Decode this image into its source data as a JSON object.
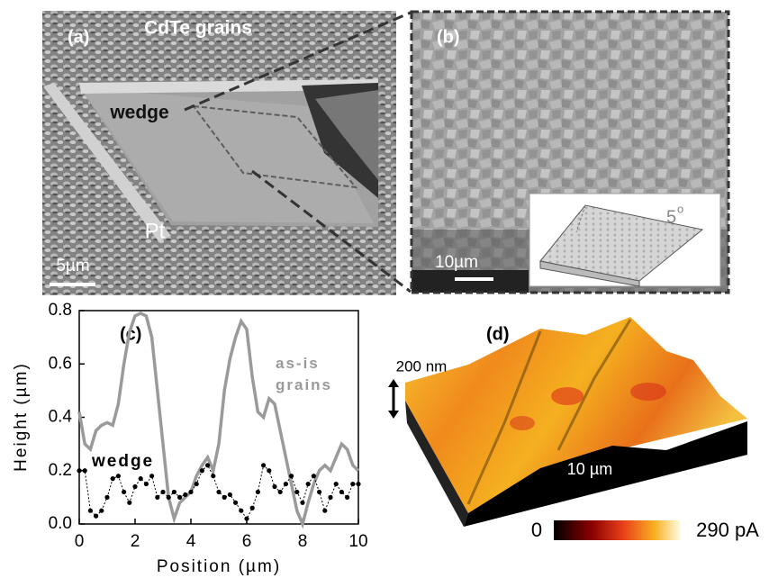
{
  "panels": {
    "a": {
      "label": "(a)",
      "title": "CdTe grains",
      "wedge_label": "wedge",
      "pt_label": "Pt",
      "scale_bar": "5µm"
    },
    "b": {
      "label": "(b)",
      "scale_bar": "10µm",
      "inset_angle": "5",
      "inset_angle_unit": "o"
    },
    "d": {
      "label": "(d)",
      "height_scale": "200 nm",
      "length_scale": "10 µm",
      "colorbar_min": "0",
      "colorbar_max": "290 pA"
    }
  },
  "chart_data": {
    "type": "line",
    "panel_label": "(c)",
    "x_label": "Position (µm)",
    "y_label": "Height (µm)",
    "x": [
      0,
      0.2,
      0.4,
      0.6,
      0.8,
      1.0,
      1.2,
      1.4,
      1.6,
      1.8,
      2.0,
      2.2,
      2.4,
      2.6,
      2.8,
      3.0,
      3.2,
      3.4,
      3.6,
      3.8,
      4.0,
      4.2,
      4.4,
      4.6,
      4.8,
      5.0,
      5.2,
      5.4,
      5.6,
      5.8,
      6.0,
      6.2,
      6.4,
      6.6,
      6.8,
      7.0,
      7.2,
      7.4,
      7.6,
      7.8,
      8.0,
      8.2,
      8.4,
      8.6,
      8.8,
      9.0,
      9.2,
      9.4,
      9.6,
      9.8,
      10.0
    ],
    "series": [
      {
        "name": "as-is grains",
        "color": "#9a9a9a",
        "marker": false,
        "values": [
          0.42,
          0.3,
          0.28,
          0.35,
          0.37,
          0.38,
          0.37,
          0.45,
          0.6,
          0.72,
          0.78,
          0.79,
          0.78,
          0.7,
          0.5,
          0.3,
          0.1,
          0.02,
          0.08,
          0.1,
          0.12,
          0.18,
          0.22,
          0.25,
          0.2,
          0.3,
          0.5,
          0.62,
          0.7,
          0.76,
          0.73,
          0.55,
          0.42,
          0.4,
          0.47,
          0.45,
          0.35,
          0.25,
          0.15,
          0.05,
          0.0,
          0.08,
          0.15,
          0.2,
          0.22,
          0.2,
          0.25,
          0.3,
          0.28,
          0.22,
          0.2
        ]
      },
      {
        "name": "wedge",
        "color": "#000000",
        "marker": true,
        "values": [
          0.2,
          0.2,
          0.05,
          0.03,
          0.05,
          0.1,
          0.17,
          0.18,
          0.12,
          0.08,
          0.14,
          0.17,
          0.15,
          0.18,
          0.1,
          0.12,
          0.1,
          0.12,
          0.1,
          0.11,
          0.12,
          0.15,
          0.2,
          0.22,
          0.18,
          0.12,
          0.1,
          0.11,
          0.08,
          0.05,
          0.02,
          0.06,
          0.12,
          0.22,
          0.2,
          0.14,
          0.12,
          0.15,
          0.18,
          0.12,
          0.08,
          0.15,
          0.18,
          0.12,
          0.05,
          0.1,
          0.15,
          0.12,
          0.1,
          0.15,
          0.15
        ]
      }
    ],
    "xlim": [
      0,
      10
    ],
    "xticks": [
      0,
      2,
      4,
      6,
      8,
      10
    ],
    "ylim": [
      0,
      0.8
    ],
    "yticks": [
      {
        "value": 0,
        "label": "0.0"
      },
      0.2,
      0.4,
      0.6,
      0.8
    ]
  }
}
